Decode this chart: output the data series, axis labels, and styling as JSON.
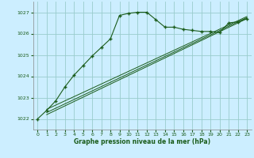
{
  "title": "Graphe pression niveau de la mer (hPa)",
  "bg_color": "#cceeff",
  "grid_color": "#99cccc",
  "line_color": "#1a5c1a",
  "marker": "+",
  "xlim": [
    -0.5,
    23.5
  ],
  "ylim": [
    1021.5,
    1027.5
  ],
  "yticks": [
    1022,
    1023,
    1024,
    1025,
    1026,
    1027
  ],
  "xticks": [
    0,
    1,
    2,
    3,
    4,
    5,
    6,
    7,
    8,
    9,
    10,
    11,
    12,
    13,
    14,
    15,
    16,
    17,
    18,
    19,
    20,
    21,
    22,
    23
  ],
  "main_line": [
    1022.0,
    1022.4,
    1022.85,
    1023.5,
    1024.05,
    1024.5,
    1024.95,
    1025.35,
    1025.75,
    1026.85,
    1026.95,
    1027.0,
    1027.0,
    1026.65,
    1026.3,
    1026.3,
    1026.2,
    1026.15,
    1026.1,
    1026.1,
    1026.05,
    1026.5,
    1026.55,
    1026.7
  ],
  "trend_lines": [
    [
      [
        1,
        1022.2
      ],
      [
        23,
        1026.7
      ]
    ],
    [
      [
        1,
        1022.3
      ],
      [
        23,
        1026.75
      ]
    ],
    [
      [
        1,
        1022.45
      ],
      [
        23,
        1026.8
      ]
    ]
  ],
  "figsize": [
    3.2,
    2.0
  ],
  "dpi": 100
}
